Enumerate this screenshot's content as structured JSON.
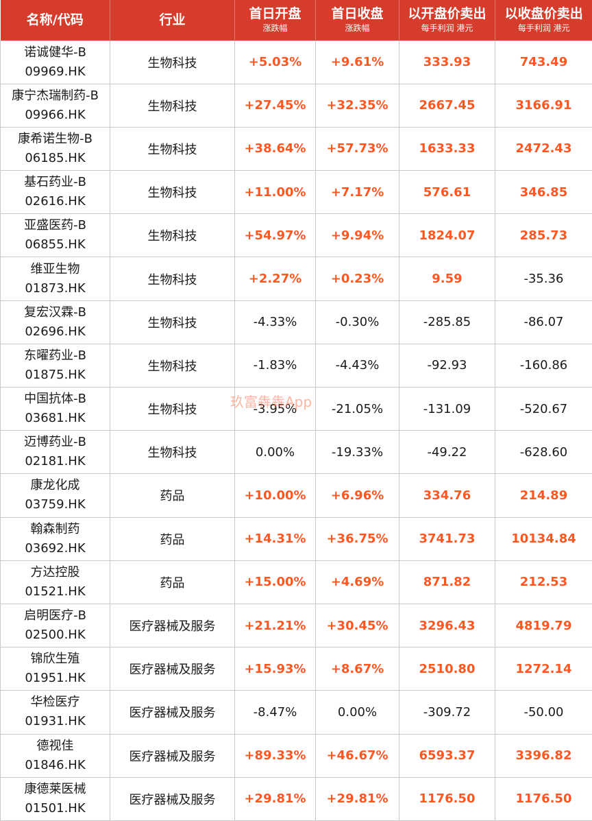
{
  "header": {
    "name_code": "名称/代码",
    "industry": "行业",
    "first_open": "首日开盘",
    "first_open_sub": "涨跌幅",
    "first_close": "首日收盘",
    "first_close_sub": "涨跌幅",
    "sell_open": "以开盘价卖出",
    "sell_open_sub": "每手利润 港元",
    "sell_close": "以收盘价卖出",
    "sell_close_sub": "每手利润 港元"
  },
  "rows": [
    {
      "name": "诺诚健华-B",
      "code": "09969.HK",
      "industry": "生物科技",
      "open_chg": "+5.03%",
      "close_chg": "+9.61%",
      "open_profit": "333.93",
      "close_profit": "743.49"
    },
    {
      "name": "康宁杰瑞制药-B",
      "code": "09966.HK",
      "industry": "生物科技",
      "open_chg": "+27.45%",
      "close_chg": "+32.35%",
      "open_profit": "2667.45",
      "close_profit": "3166.91"
    },
    {
      "name": "康希诺生物-B",
      "code": "06185.HK",
      "industry": "生物科技",
      "open_chg": "+38.64%",
      "close_chg": "+57.73%",
      "open_profit": "1633.33",
      "close_profit": "2472.43"
    },
    {
      "name": "基石药业-B",
      "code": "02616.HK",
      "industry": "生物科技",
      "open_chg": "+11.00%",
      "close_chg": "+7.17%",
      "open_profit": "576.61",
      "close_profit": "346.85"
    },
    {
      "name": "亚盛医药-B",
      "code": "06855.HK",
      "industry": "生物科技",
      "open_chg": "+54.97%",
      "close_chg": "+9.94%",
      "open_profit": "1824.07",
      "close_profit": "285.73"
    },
    {
      "name": "维亚生物",
      "code": "01873.HK",
      "industry": "生物科技",
      "open_chg": "+2.27%",
      "close_chg": "+0.23%",
      "open_profit": "9.59",
      "close_profit": "-35.36"
    },
    {
      "name": "复宏汉霖-B",
      "code": "02696.HK",
      "industry": "生物科技",
      "open_chg": "-4.33%",
      "close_chg": "-0.30%",
      "open_profit": "-285.85",
      "close_profit": "-86.07"
    },
    {
      "name": "东曜药业-B",
      "code": "01875.HK",
      "industry": "生物科技",
      "open_chg": "-1.83%",
      "close_chg": "-4.43%",
      "open_profit": "-92.93",
      "close_profit": "-160.86"
    },
    {
      "name": "中国抗体-B",
      "code": "03681.HK",
      "industry": "生物科技",
      "open_chg": "-3.95%",
      "close_chg": "-21.05%",
      "open_profit": "-131.09",
      "close_profit": "-520.67"
    },
    {
      "name": "迈博药业-B",
      "code": "02181.HK",
      "industry": "生物科技",
      "open_chg": "0.00%",
      "close_chg": "-19.33%",
      "open_profit": "-49.22",
      "close_profit": "-628.60"
    },
    {
      "name": "康龙化成",
      "code": "03759.HK",
      "industry": "药品",
      "open_chg": "+10.00%",
      "close_chg": "+6.96%",
      "open_profit": "334.76",
      "close_profit": "214.89"
    },
    {
      "name": "翰森制药",
      "code": "03692.HK",
      "industry": "药品",
      "open_chg": "+14.31%",
      "close_chg": "+36.75%",
      "open_profit": "3741.73",
      "close_profit": "10134.84"
    },
    {
      "name": "方达控股",
      "code": "01521.HK",
      "industry": "药品",
      "open_chg": "+15.00%",
      "close_chg": "+4.69%",
      "open_profit": "871.82",
      "close_profit": "212.53"
    },
    {
      "name": "启明医疗-B",
      "code": "02500.HK",
      "industry": "医疗器械及服务",
      "open_chg": "+21.21%",
      "close_chg": "+30.45%",
      "open_profit": "3296.43",
      "close_profit": "4819.79"
    },
    {
      "name": "锦欣生殖",
      "code": "01951.HK",
      "industry": "医疗器械及服务",
      "open_chg": "+15.93%",
      "close_chg": "+8.67%",
      "open_profit": "2510.80",
      "close_profit": "1272.14"
    },
    {
      "name": "华检医疗",
      "code": "01931.HK",
      "industry": "医疗器械及服务",
      "open_chg": "-8.47%",
      "close_chg": "0.00%",
      "open_profit": "-309.72",
      "close_profit": "-50.00"
    },
    {
      "name": "德视佳",
      "code": "01846.HK",
      "industry": "医疗器械及服务",
      "open_chg": "+89.33%",
      "close_chg": "+46.67%",
      "open_profit": "6593.37",
      "close_profit": "3396.82"
    },
    {
      "name": "康德莱医械",
      "code": "01501.HK",
      "industry": "医疗器械及服务",
      "open_chg": "+29.81%",
      "close_chg": "+29.81%",
      "open_profit": "1176.50",
      "close_profit": "1176.50"
    }
  ],
  "watermark": "玖富犇犇App",
  "colors": {
    "header_bg": "#d63c2b",
    "positive": "#ff5722",
    "negative": "#1a1a1a"
  }
}
